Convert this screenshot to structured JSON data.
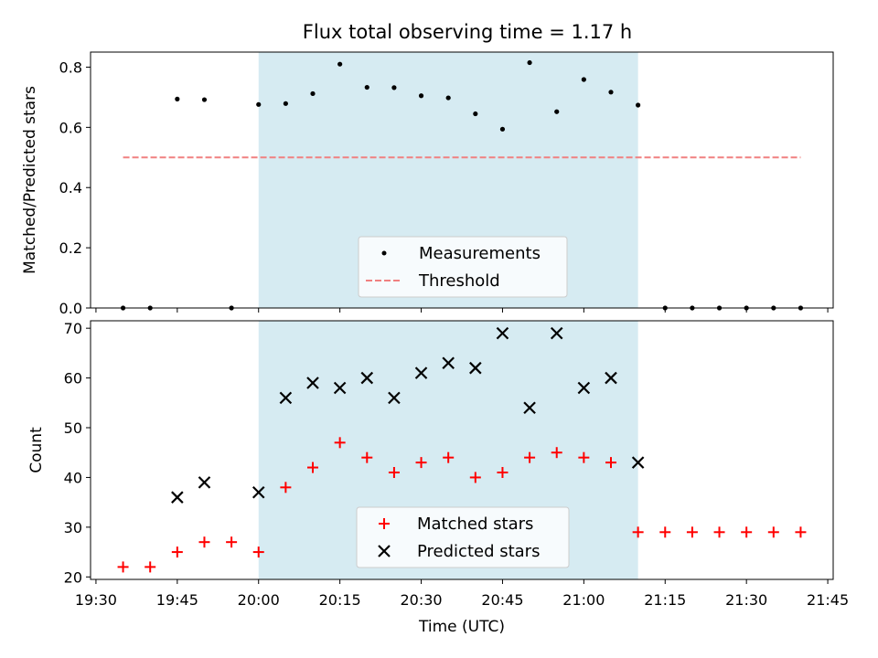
{
  "chart_data": [
    {
      "type": "scatter",
      "title": "Flux total observing time = 1.17 h",
      "xlabel": "",
      "ylabel": "Matched/Predicted stars",
      "xlim": [
        "19:29",
        "21:46"
      ],
      "ylim": [
        0,
        0.85
      ],
      "yticks": [
        "0.0",
        "0.2",
        "0.4",
        "0.6",
        "0.8"
      ],
      "grid": false,
      "shaded_span": {
        "from": "20:00",
        "to": "21:10",
        "color": "#add8e6"
      },
      "legend": {
        "placement": "lower-center",
        "entries": [
          "Measurements",
          "Threshold"
        ]
      },
      "series": [
        {
          "name": "Measurements",
          "marker": "dot",
          "color": "#000000",
          "x": [
            "19:35",
            "19:40",
            "19:45",
            "19:50",
            "19:55",
            "20:00",
            "20:05",
            "20:10",
            "20:15",
            "20:20",
            "20:25",
            "20:30",
            "20:35",
            "20:40",
            "20:45",
            "20:50",
            "20:55",
            "21:00",
            "21:05",
            "21:10",
            "21:15",
            "21:20",
            "21:25",
            "21:30",
            "21:35",
            "21:40"
          ],
          "y": [
            0,
            0,
            0.694,
            0.692,
            0,
            0.676,
            0.679,
            0.712,
            0.81,
            0.733,
            0.732,
            0.705,
            0.698,
            0.645,
            0.594,
            0.815,
            0.652,
            0.759,
            0.717,
            0.674,
            0,
            0,
            0,
            0,
            0,
            0
          ]
        },
        {
          "name": "Threshold",
          "marker": "dashed-line",
          "color": "#f08080",
          "x": [
            "19:35",
            "21:40"
          ],
          "y": [
            0.5,
            0.5
          ]
        }
      ]
    },
    {
      "type": "scatter",
      "title": "",
      "xlabel": "Time (UTC)",
      "ylabel": "Count",
      "xlim": [
        "19:29",
        "21:46"
      ],
      "ylim": [
        19.5,
        71.5
      ],
      "xticks": [
        "19:30",
        "19:45",
        "20:00",
        "20:15",
        "20:30",
        "20:45",
        "21:00",
        "21:15",
        "21:30",
        "21:45"
      ],
      "yticks": [
        "20",
        "30",
        "40",
        "50",
        "60",
        "70"
      ],
      "grid": false,
      "shaded_span": {
        "from": "20:00",
        "to": "21:10",
        "color": "#add8e6"
      },
      "legend": {
        "placement": "lower-center",
        "entries": [
          "Matched stars",
          "Predicted stars"
        ]
      },
      "series": [
        {
          "name": "Matched stars",
          "marker": "plus",
          "color": "#ff0000",
          "x": [
            "19:35",
            "19:40",
            "19:45",
            "19:50",
            "19:55",
            "20:00",
            "20:05",
            "20:10",
            "20:15",
            "20:20",
            "20:25",
            "20:30",
            "20:35",
            "20:40",
            "20:45",
            "20:50",
            "20:55",
            "21:00",
            "21:05",
            "21:10",
            "21:15",
            "21:20",
            "21:25",
            "21:30",
            "21:35",
            "21:40"
          ],
          "y": [
            22,
            22,
            25,
            27,
            27,
            25,
            38,
            42,
            47,
            44,
            41,
            43,
            44,
            40,
            41,
            44,
            45,
            44,
            43,
            29,
            29,
            29,
            29,
            29,
            29,
            29
          ]
        },
        {
          "name": "Predicted stars",
          "marker": "x",
          "color": "#000000",
          "x": [
            "19:45",
            "19:50",
            "20:00",
            "20:05",
            "20:10",
            "20:15",
            "20:20",
            "20:25",
            "20:30",
            "20:35",
            "20:40",
            "20:45",
            "20:50",
            "20:55",
            "21:00",
            "21:05",
            "21:10"
          ],
          "y": [
            36,
            39,
            37,
            56,
            59,
            58,
            60,
            56,
            61,
            63,
            62,
            69,
            54,
            69,
            58,
            60,
            43
          ]
        }
      ]
    }
  ]
}
